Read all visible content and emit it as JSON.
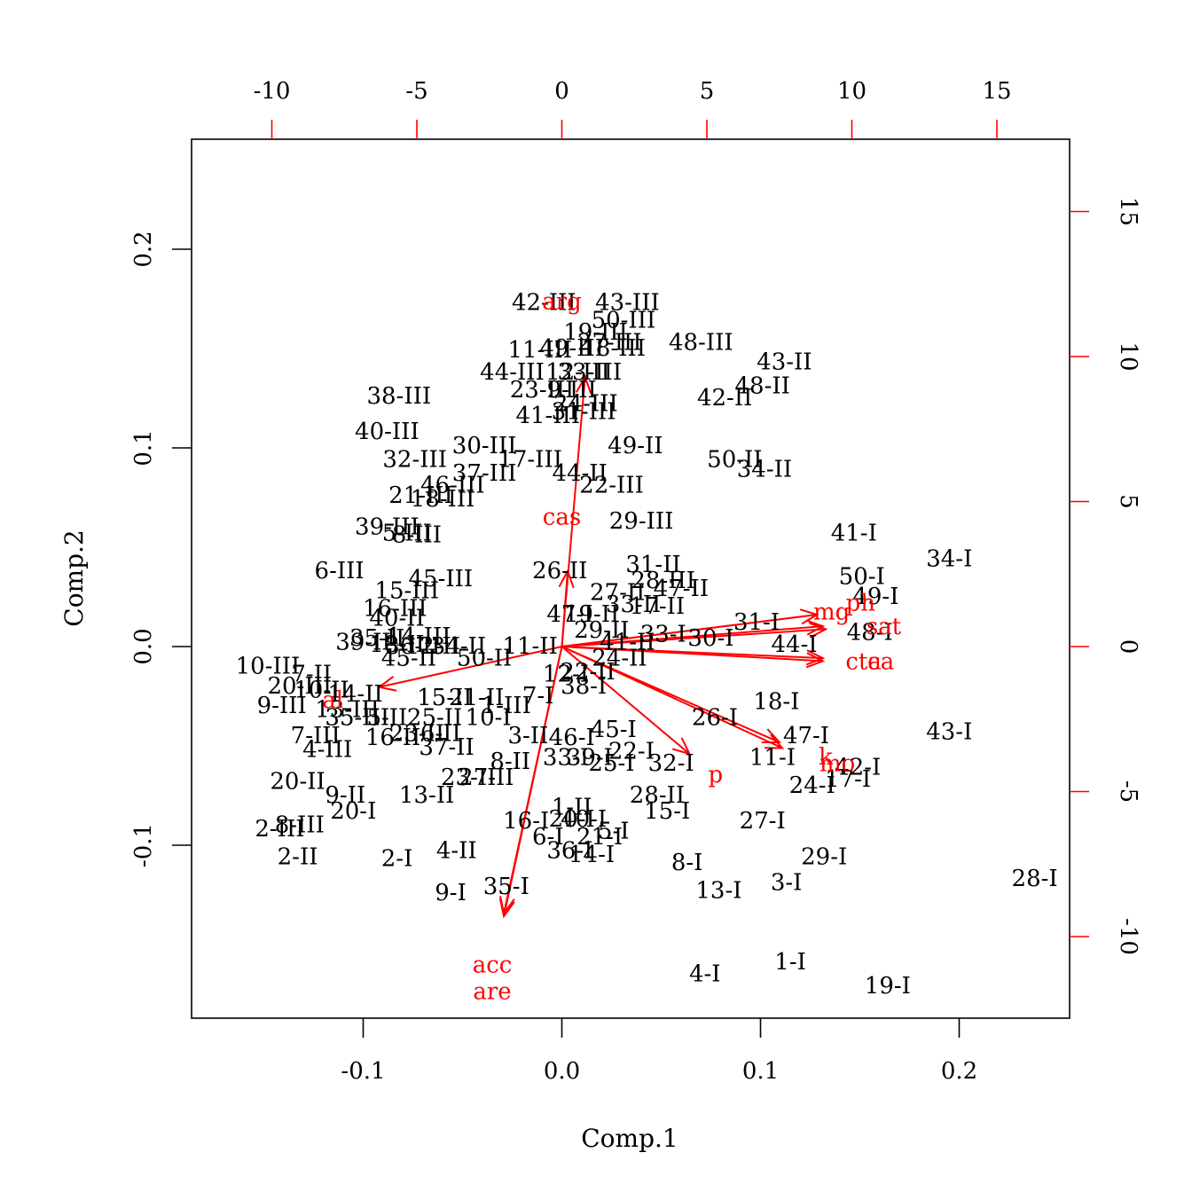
{
  "chart_data": {
    "type": "scatter",
    "subtype": "biplot",
    "xlabel": "Comp.1",
    "ylabel": "Comp.2",
    "xlim": [
      -0.19,
      0.25
    ],
    "ylim": [
      -0.187,
      0.255
    ],
    "x_ticks": [
      -0.1,
      0.0,
      0.1,
      0.2
    ],
    "x_tick_labels": [
      "-0.1",
      "0.0",
      "0.1",
      "0.2"
    ],
    "y_ticks": [
      -0.1,
      0.0,
      0.1,
      0.2
    ],
    "y_tick_labels": [
      "-0.1",
      "0.0",
      "0.1",
      "0.2"
    ],
    "top_ticks": [
      -10,
      -5,
      0,
      5,
      10,
      15
    ],
    "top_tick_labels": [
      "-10",
      "-5",
      "0",
      "5",
      "10",
      "15"
    ],
    "right_ticks": [
      -10,
      -5,
      0,
      5,
      10,
      15
    ],
    "right_tick_labels": [
      "-10",
      "-5",
      "0",
      "5",
      "10",
      "15"
    ],
    "colors": {
      "observations": "#000000",
      "variables": "#ff0000"
    },
    "observations": [
      {
        "label": "42-III",
        "x": -0.009,
        "y": 0.173
      },
      {
        "label": "43-III",
        "x": 0.033,
        "y": 0.173
      },
      {
        "label": "50-III",
        "x": 0.031,
        "y": 0.164
      },
      {
        "label": "19-III",
        "x": 0.017,
        "y": 0.158
      },
      {
        "label": "27-III",
        "x": 0.024,
        "y": 0.153
      },
      {
        "label": "11-III",
        "x": -0.011,
        "y": 0.149
      },
      {
        "label": "49-III",
        "x": 0.005,
        "y": 0.15
      },
      {
        "label": "18-III",
        "x": 0.026,
        "y": 0.15
      },
      {
        "label": "48-III",
        "x": 0.07,
        "y": 0.153
      },
      {
        "label": "43-II",
        "x": 0.112,
        "y": 0.143
      },
      {
        "label": "44-III",
        "x": -0.025,
        "y": 0.138
      },
      {
        "label": "12-III",
        "x": 0.008,
        "y": 0.138
      },
      {
        "label": "33-III",
        "x": 0.014,
        "y": 0.138
      },
      {
        "label": "48-II",
        "x": 0.101,
        "y": 0.131
      },
      {
        "label": "23-III",
        "x": -0.01,
        "y": 0.129
      },
      {
        "label": "9-III",
        "x": 0.005,
        "y": 0.129
      },
      {
        "label": "42-II",
        "x": 0.082,
        "y": 0.125
      },
      {
        "label": "38-III",
        "x": -0.082,
        "y": 0.126
      },
      {
        "label": "24-III",
        "x": 0.012,
        "y": 0.122
      },
      {
        "label": "41-III",
        "x": -0.007,
        "y": 0.116
      },
      {
        "label": "31-III",
        "x": 0.011,
        "y": 0.118
      },
      {
        "label": "40-III",
        "x": -0.088,
        "y": 0.108
      },
      {
        "label": "30-III",
        "x": -0.039,
        "y": 0.101
      },
      {
        "label": "49-II",
        "x": 0.037,
        "y": 0.101
      },
      {
        "label": "32-III",
        "x": -0.074,
        "y": 0.094
      },
      {
        "label": "17-III",
        "x": -0.016,
        "y": 0.094
      },
      {
        "label": "50-II",
        "x": 0.087,
        "y": 0.094
      },
      {
        "label": "34-II",
        "x": 0.102,
        "y": 0.089
      },
      {
        "label": "37-III",
        "x": -0.039,
        "y": 0.087
      },
      {
        "label": "44-II",
        "x": 0.009,
        "y": 0.087
      },
      {
        "label": "22-III",
        "x": 0.025,
        "y": 0.081
      },
      {
        "label": "46-III",
        "x": -0.055,
        "y": 0.081
      },
      {
        "label": "21-III",
        "x": -0.071,
        "y": 0.076
      },
      {
        "label": "18-III",
        "x": -0.06,
        "y": 0.074
      },
      {
        "label": "29-III",
        "x": 0.04,
        "y": 0.063
      },
      {
        "label": "39-III",
        "x": -0.088,
        "y": 0.06
      },
      {
        "label": "5-III",
        "x": -0.078,
        "y": 0.057
      },
      {
        "label": "8-III",
        "x": -0.073,
        "y": 0.056
      },
      {
        "label": "41-I",
        "x": 0.147,
        "y": 0.057
      },
      {
        "label": "34-I",
        "x": 0.195,
        "y": 0.044
      },
      {
        "label": "6-III",
        "x": -0.112,
        "y": 0.038
      },
      {
        "label": "26-II",
        "x": -0.001,
        "y": 0.038
      },
      {
        "label": "31-II",
        "x": 0.046,
        "y": 0.041
      },
      {
        "label": "45-III",
        "x": -0.061,
        "y": 0.034
      },
      {
        "label": "28-III",
        "x": 0.051,
        "y": 0.033
      },
      {
        "label": "47-II",
        "x": 0.06,
        "y": 0.029
      },
      {
        "label": "50-I",
        "x": 0.151,
        "y": 0.035
      },
      {
        "label": "15-III",
        "x": -0.078,
        "y": 0.028
      },
      {
        "label": "27-II",
        "x": 0.028,
        "y": 0.027
      },
      {
        "label": "49-I",
        "x": 0.158,
        "y": 0.025
      },
      {
        "label": "16-III",
        "x": -0.084,
        "y": 0.019
      },
      {
        "label": "33-II",
        "x": 0.036,
        "y": 0.021
      },
      {
        "label": "17-II",
        "x": 0.048,
        "y": 0.02
      },
      {
        "label": "47-I",
        "x": 0.004,
        "y": 0.016
      },
      {
        "label": "19-II",
        "x": 0.015,
        "y": 0.016
      },
      {
        "label": "40-II",
        "x": -0.083,
        "y": 0.014
      },
      {
        "label": "29-II",
        "x": 0.02,
        "y": 0.008
      },
      {
        "label": "31-I",
        "x": 0.098,
        "y": 0.012
      },
      {
        "label": "48-I",
        "x": 0.155,
        "y": 0.007
      },
      {
        "label": "14-III",
        "x": -0.072,
        "y": 0.005
      },
      {
        "label": "35-II",
        "x": -0.093,
        "y": 0.004
      },
      {
        "label": "44-I",
        "x": 0.117,
        "y": 0.001
      },
      {
        "label": "33-I",
        "x": 0.051,
        "y": 0.006
      },
      {
        "label": "30-I",
        "x": 0.075,
        "y": 0.004
      },
      {
        "label": "41-II",
        "x": 0.033,
        "y": 0.002
      },
      {
        "label": "39-II",
        "x": -0.1,
        "y": 0.002
      },
      {
        "label": "18-II",
        "x": -0.083,
        "y": 0.001
      },
      {
        "label": "36-II",
        "x": -0.075,
        "y": 0.0
      },
      {
        "label": "12-II",
        "x": -0.065,
        "y": 0.0
      },
      {
        "label": "34-II",
        "x": -0.052,
        "y": 0.0
      },
      {
        "label": "11-II",
        "x": -0.016,
        "y": 0.0
      },
      {
        "label": "45-II",
        "x": -0.077,
        "y": -0.006
      },
      {
        "label": "50-II",
        "x": -0.039,
        "y": -0.006
      },
      {
        "label": "24-II",
        "x": 0.029,
        "y": -0.006
      },
      {
        "label": "10-III",
        "x": -0.148,
        "y": -0.01
      },
      {
        "label": "7-II",
        "x": -0.126,
        "y": -0.014
      },
      {
        "label": "12-I",
        "x": 0.002,
        "y": -0.014
      },
      {
        "label": "22-II",
        "x": 0.013,
        "y": -0.013
      },
      {
        "label": "38-I",
        "x": 0.011,
        "y": -0.02
      },
      {
        "label": "20-III",
        "x": -0.132,
        "y": -0.02
      },
      {
        "label": "10-II",
        "x": -0.121,
        "y": -0.022
      },
      {
        "label": "14-II",
        "x": -0.104,
        "y": -0.024
      },
      {
        "label": "15-II",
        "x": -0.059,
        "y": -0.026
      },
      {
        "label": "21-II",
        "x": -0.043,
        "y": -0.026
      },
      {
        "label": "7-I",
        "x": -0.012,
        "y": -0.025
      },
      {
        "label": "18-I",
        "x": 0.108,
        "y": -0.028
      },
      {
        "label": "9-III",
        "x": -0.141,
        "y": -0.03
      },
      {
        "label": "13-III",
        "x": -0.108,
        "y": -0.032
      },
      {
        "label": "1-III",
        "x": -0.028,
        "y": -0.03
      },
      {
        "label": "35-III",
        "x": -0.103,
        "y": -0.036
      },
      {
        "label": "5-II",
        "x": -0.088,
        "y": -0.036
      },
      {
        "label": "25-II",
        "x": -0.064,
        "y": -0.036
      },
      {
        "label": "10-I",
        "x": -0.037,
        "y": -0.036
      },
      {
        "label": "26-I",
        "x": 0.077,
        "y": -0.036
      },
      {
        "label": "45-I",
        "x": 0.026,
        "y": -0.042
      },
      {
        "label": "7-III",
        "x": -0.124,
        "y": -0.045
      },
      {
        "label": "16-II",
        "x": -0.085,
        "y": -0.046
      },
      {
        "label": "23-II",
        "x": -0.073,
        "y": -0.044
      },
      {
        "label": "6-II",
        "x": -0.061,
        "y": -0.044
      },
      {
        "label": "3-II",
        "x": -0.017,
        "y": -0.045
      },
      {
        "label": "46-I",
        "x": 0.005,
        "y": -0.046
      },
      {
        "label": "47-I",
        "x": 0.123,
        "y": -0.045
      },
      {
        "label": "43-I",
        "x": 0.195,
        "y": -0.043
      },
      {
        "label": "4-III",
        "x": -0.118,
        "y": -0.052
      },
      {
        "label": "37-II",
        "x": -0.058,
        "y": -0.051
      },
      {
        "label": "22-I",
        "x": 0.035,
        "y": -0.053
      },
      {
        "label": "33-I",
        "x": 0.002,
        "y": -0.056
      },
      {
        "label": "39-I",
        "x": 0.014,
        "y": -0.056
      },
      {
        "label": "11-I",
        "x": 0.106,
        "y": -0.056
      },
      {
        "label": "32-I",
        "x": 0.055,
        "y": -0.059
      },
      {
        "label": "25-I",
        "x": 0.025,
        "y": -0.059
      },
      {
        "label": "8-II",
        "x": -0.026,
        "y": -0.058
      },
      {
        "label": "42-I",
        "x": 0.149,
        "y": -0.061
      },
      {
        "label": "17-I",
        "x": 0.144,
        "y": -0.067
      },
      {
        "label": "24-I",
        "x": 0.126,
        "y": -0.07
      },
      {
        "label": "23-II",
        "x": -0.047,
        "y": -0.066
      },
      {
        "label": "27-II",
        "x": -0.038,
        "y": -0.066
      },
      {
        "label": "20-II",
        "x": -0.133,
        "y": -0.068
      },
      {
        "label": "9-II",
        "x": -0.109,
        "y": -0.075
      },
      {
        "label": "13-II",
        "x": -0.068,
        "y": -0.075
      },
      {
        "label": "28-II",
        "x": 0.048,
        "y": -0.075
      },
      {
        "label": "20-I",
        "x": -0.105,
        "y": -0.083
      },
      {
        "label": "15-I",
        "x": 0.053,
        "y": -0.083
      },
      {
        "label": "1-II",
        "x": 0.005,
        "y": -0.081
      },
      {
        "label": "16-I",
        "x": -0.018,
        "y": -0.088
      },
      {
        "label": "20-I",
        "x": 0.005,
        "y": -0.087
      },
      {
        "label": "40-I",
        "x": 0.011,
        "y": -0.087
      },
      {
        "label": "27-I",
        "x": 0.101,
        "y": -0.088
      },
      {
        "label": "2-III",
        "x": -0.142,
        "y": -0.092
      },
      {
        "label": "8-III",
        "x": -0.132,
        "y": -0.09
      },
      {
        "label": "6-I",
        "x": -0.007,
        "y": -0.096
      },
      {
        "label": "21-I",
        "x": 0.019,
        "y": -0.096
      },
      {
        "label": "5-I",
        "x": 0.026,
        "y": -0.093
      },
      {
        "label": "2-II",
        "x": -0.133,
        "y": -0.106
      },
      {
        "label": "2-I",
        "x": -0.083,
        "y": -0.107
      },
      {
        "label": "4-II",
        "x": -0.053,
        "y": -0.103
      },
      {
        "label": "36-I",
        "x": 0.004,
        "y": -0.103
      },
      {
        "label": "14-I",
        "x": 0.015,
        "y": -0.105
      },
      {
        "label": "8-I",
        "x": 0.063,
        "y": -0.109
      },
      {
        "label": "29-I",
        "x": 0.132,
        "y": -0.106
      },
      {
        "label": "28-I",
        "x": 0.238,
        "y": -0.117
      },
      {
        "label": "3-I",
        "x": 0.113,
        "y": -0.119
      },
      {
        "label": "13-I",
        "x": 0.079,
        "y": -0.123
      },
      {
        "label": "35-I",
        "x": -0.028,
        "y": -0.121
      },
      {
        "label": "9-I",
        "x": -0.056,
        "y": -0.124
      },
      {
        "label": "1-I",
        "x": 0.115,
        "y": -0.159
      },
      {
        "label": "4-I",
        "x": 0.072,
        "y": -0.165
      },
      {
        "label": "19-I",
        "x": 0.164,
        "y": -0.171
      }
    ],
    "variables": [
      {
        "label": "arg",
        "x": 0.8,
        "y": 9.3,
        "lx": 0.0,
        "ly": 11.88
      },
      {
        "label": "cas",
        "x": 0.2,
        "y": 2.6,
        "lx": 0.0,
        "ly": 4.45
      },
      {
        "label": "mg",
        "x": 8.8,
        "y": 1.1,
        "lx": 9.3,
        "ly": 1.18
      },
      {
        "label": "ph",
        "x": 9.0,
        "y": 0.7,
        "lx": 10.3,
        "ly": 1.49
      },
      {
        "label": "sat",
        "x": 9.1,
        "y": 0.6,
        "lx": 11.1,
        "ly": 0.67
      },
      {
        "label": "ca",
        "x": 9.0,
        "y": -0.4,
        "lx": 11.0,
        "ly": -0.54
      },
      {
        "label": "cta",
        "x": 9.0,
        "y": -0.5,
        "lx": 10.4,
        "ly": -0.54
      },
      {
        "label": "k",
        "x": 7.6,
        "y": -3.5,
        "lx": 9.1,
        "ly": -3.82
      },
      {
        "label": "mo",
        "x": 7.5,
        "y": -3.3,
        "lx": 9.5,
        "ly": -4.05
      },
      {
        "label": "p",
        "x": 4.4,
        "y": -3.7,
        "lx": 5.3,
        "ly": -4.43
      },
      {
        "label": "al",
        "x": -6.3,
        "y": -1.4,
        "lx": -7.9,
        "ly": -1.86
      },
      {
        "label": "acc",
        "x": -2.0,
        "y": -9.2,
        "lx": -2.4,
        "ly": -10.99
      },
      {
        "label": "are",
        "x": -2.0,
        "y": -9.3,
        "lx": -2.4,
        "ly": -11.91
      }
    ]
  }
}
